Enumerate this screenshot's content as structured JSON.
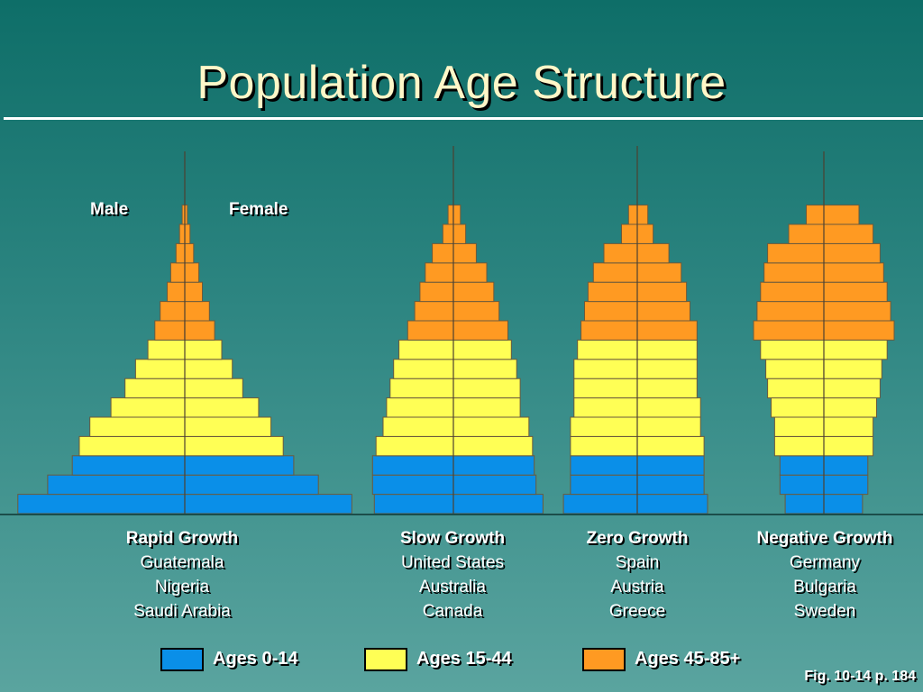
{
  "title": "Population Age Structure",
  "labels": {
    "male": "Male",
    "female": "Female"
  },
  "figure_ref": "Fig. 10-14 p. 184",
  "colors": {
    "Ages 0-14": "#0a8fe8",
    "Ages 15-44": "#ffff55",
    "Ages 45-85+": "#ff9a22",
    "outline": "#6b5a3c"
  },
  "groups": [
    {
      "name": "Rapid Growth",
      "countries": [
        "Guatemala",
        "Nigeria",
        "Saudi Arabia"
      ]
    },
    {
      "name": "Slow Growth",
      "countries": [
        "United States",
        "Australia",
        "Canada"
      ]
    },
    {
      "name": "Zero Growth",
      "countries": [
        "Spain",
        "Austria",
        "Greece"
      ]
    },
    {
      "name": "Negative Growth",
      "countries": [
        "Germany",
        "Bulgaria",
        "Sweden"
      ]
    }
  ],
  "chart_data": {
    "type": "bar",
    "orientation": "population-pyramid",
    "title": "Population Age Structure",
    "legend": [
      "Ages 0-14",
      "Ages 15-44",
      "Ages 45-85+"
    ],
    "pyramids": [
      {
        "name": "Rapid Growth",
        "age_groups": [
          "Ages 0-14",
          "Ages 0-14",
          "Ages 0-14",
          "Ages 15-44",
          "Ages 15-44",
          "Ages 15-44",
          "Ages 15-44",
          "Ages 15-44",
          "Ages 15-44",
          "Ages 45-85+",
          "Ages 45-85+",
          "Ages 45-85+",
          "Ages 45-85+",
          "Ages 45-85+",
          "Ages 45-85+",
          "Ages 45-85+"
        ],
        "male": [
          9.5,
          7.8,
          6.4,
          6.0,
          5.4,
          4.2,
          3.4,
          2.8,
          2.1,
          1.7,
          1.4,
          1.0,
          0.8,
          0.5,
          0.3,
          0.15
        ],
        "female": [
          9.5,
          7.6,
          6.2,
          5.6,
          4.9,
          4.2,
          3.3,
          2.7,
          2.1,
          1.7,
          1.4,
          1.0,
          0.8,
          0.5,
          0.3,
          0.15
        ]
      },
      {
        "name": "Slow Growth",
        "age_groups": [
          "Ages 0-14",
          "Ages 0-14",
          "Ages 0-14",
          "Ages 15-44",
          "Ages 15-44",
          "Ages 15-44",
          "Ages 15-44",
          "Ages 15-44",
          "Ages 15-44",
          "Ages 45-85+",
          "Ages 45-85+",
          "Ages 45-85+",
          "Ages 45-85+",
          "Ages 45-85+",
          "Ages 45-85+",
          "Ages 45-85+"
        ],
        "male": [
          4.5,
          4.6,
          4.6,
          4.4,
          4.0,
          3.8,
          3.6,
          3.4,
          3.1,
          2.6,
          2.2,
          1.9,
          1.6,
          1.2,
          0.6,
          0.3
        ],
        "female": [
          5.1,
          4.7,
          4.6,
          4.5,
          4.3,
          3.8,
          3.8,
          3.6,
          3.3,
          3.1,
          2.6,
          2.3,
          1.9,
          1.3,
          0.7,
          0.4
        ]
      },
      {
        "name": "Zero Growth",
        "age_groups": [
          "Ages 0-14",
          "Ages 0-14",
          "Ages 0-14",
          "Ages 15-44",
          "Ages 15-44",
          "Ages 15-44",
          "Ages 15-44",
          "Ages 15-44",
          "Ages 15-44",
          "Ages 45-85+",
          "Ages 45-85+",
          "Ages 45-85+",
          "Ages 45-85+",
          "Ages 45-85+",
          "Ages 45-85+",
          "Ages 45-85+"
        ],
        "male": [
          4.2,
          3.8,
          3.8,
          3.8,
          3.8,
          3.6,
          3.6,
          3.6,
          3.4,
          3.2,
          3.0,
          2.8,
          2.5,
          1.9,
          0.9,
          0.5
        ],
        "female": [
          4.0,
          3.8,
          3.8,
          3.8,
          3.6,
          3.6,
          3.4,
          3.4,
          3.4,
          3.4,
          3.0,
          2.8,
          2.5,
          1.8,
          0.9,
          0.6
        ]
      },
      {
        "name": "Negative Growth",
        "age_groups": [
          "Ages 0-14",
          "Ages 0-14",
          "Ages 0-14",
          "Ages 15-44",
          "Ages 15-44",
          "Ages 15-44",
          "Ages 15-44",
          "Ages 15-44",
          "Ages 15-44",
          "Ages 45-85+",
          "Ages 45-85+",
          "Ages 45-85+",
          "Ages 45-85+",
          "Ages 45-85+",
          "Ages 45-85+",
          "Ages 45-85+"
        ],
        "male": [
          2.2,
          2.5,
          2.5,
          2.8,
          2.8,
          3.0,
          3.2,
          3.3,
          3.6,
          4.0,
          3.8,
          3.6,
          3.4,
          3.2,
          2.0,
          1.0
        ],
        "female": [
          2.2,
          2.5,
          2.5,
          2.8,
          2.8,
          3.0,
          3.2,
          3.3,
          3.6,
          4.0,
          3.8,
          3.6,
          3.4,
          3.2,
          2.8,
          2.0
        ]
      }
    ]
  }
}
